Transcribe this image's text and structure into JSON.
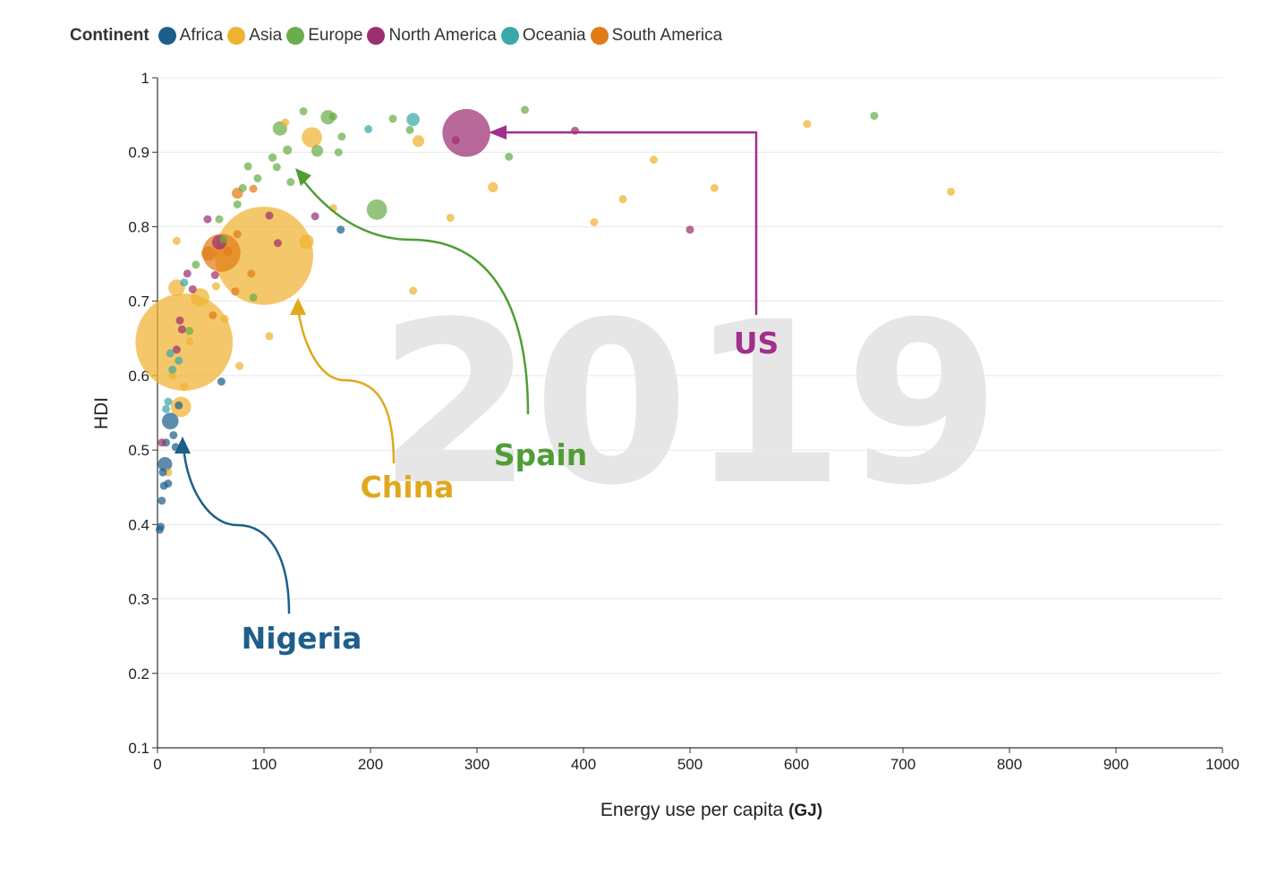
{
  "legend": {
    "title": "Continent",
    "items": [
      {
        "label": "Africa",
        "color": "#1d5f8a"
      },
      {
        "label": "Asia",
        "color": "#f0b331"
      },
      {
        "label": "Europe",
        "color": "#6aad4a"
      },
      {
        "label": "North America",
        "color": "#9c2f72"
      },
      {
        "label": "Oceania",
        "color": "#3aa8a8"
      },
      {
        "label": "South America",
        "color": "#e07b16"
      }
    ]
  },
  "chart_data": {
    "type": "scatter",
    "title": "",
    "year_label": "2019",
    "xlabel": "Energy use per capita",
    "xlabel_unit": "(GJ)",
    "ylabel": "HDI",
    "xlim": [
      0,
      1000
    ],
    "ylim": [
      0.1,
      1.0
    ],
    "x_ticks": [
      0,
      100,
      200,
      300,
      400,
      500,
      600,
      700,
      800,
      900,
      1000
    ],
    "y_ticks": [
      0.1,
      0.2,
      0.3,
      0.4,
      0.5,
      0.6,
      0.7,
      0.8,
      0.9,
      1
    ],
    "grid": "horizontal",
    "legend_position": "top-left",
    "bubble_size_encodes": "population",
    "series": [
      {
        "name": "Africa",
        "color": "#1d5f8a",
        "points": [
          {
            "x": 3,
            "y": 0.397,
            "size": 2
          },
          {
            "x": 2,
            "y": 0.393,
            "size": 2
          },
          {
            "x": 4,
            "y": 0.432,
            "size": 2
          },
          {
            "x": 6,
            "y": 0.452,
            "size": 2
          },
          {
            "x": 7,
            "y": 0.481,
            "size": 30
          },
          {
            "x": 10,
            "y": 0.455,
            "size": 4
          },
          {
            "x": 5,
            "y": 0.47,
            "size": 3
          },
          {
            "x": 12,
            "y": 0.539,
            "size": 40
          },
          {
            "x": 8,
            "y": 0.51,
            "size": 4
          },
          {
            "x": 15,
            "y": 0.52,
            "size": 3
          },
          {
            "x": 20,
            "y": 0.56,
            "size": 2
          },
          {
            "x": 60,
            "y": 0.592,
            "size": 2
          },
          {
            "x": 172,
            "y": 0.796,
            "size": 2
          },
          {
            "x": 17,
            "y": 0.504,
            "size": 3
          }
        ]
      },
      {
        "name": "Asia",
        "color": "#f0b331",
        "points": [
          {
            "x": 25,
            "y": 0.645,
            "size": 1366
          },
          {
            "x": 100,
            "y": 0.761,
            "size": 1398
          },
          {
            "x": 22,
            "y": 0.558,
            "size": 60
          },
          {
            "x": 18,
            "y": 0.718,
            "size": 40
          },
          {
            "x": 40,
            "y": 0.705,
            "size": 50
          },
          {
            "x": 25,
            "y": 0.585,
            "size": 10
          },
          {
            "x": 145,
            "y": 0.92,
            "size": 60
          },
          {
            "x": 140,
            "y": 0.78,
            "size": 30
          },
          {
            "x": 245,
            "y": 0.915,
            "size": 20
          },
          {
            "x": 315,
            "y": 0.853,
            "size": 15
          },
          {
            "x": 610,
            "y": 0.938,
            "size": 2
          },
          {
            "x": 745,
            "y": 0.847,
            "size": 2
          },
          {
            "x": 523,
            "y": 0.852,
            "size": 2
          },
          {
            "x": 466,
            "y": 0.89,
            "size": 2
          },
          {
            "x": 437,
            "y": 0.837,
            "size": 2
          },
          {
            "x": 410,
            "y": 0.806,
            "size": 2
          },
          {
            "x": 275,
            "y": 0.812,
            "size": 2
          },
          {
            "x": 240,
            "y": 0.714,
            "size": 2
          },
          {
            "x": 105,
            "y": 0.653,
            "size": 2
          },
          {
            "x": 77,
            "y": 0.613,
            "size": 2
          },
          {
            "x": 18,
            "y": 0.781,
            "size": 3
          },
          {
            "x": 55,
            "y": 0.72,
            "size": 5
          },
          {
            "x": 10,
            "y": 0.47,
            "size": 4
          },
          {
            "x": 165,
            "y": 0.825,
            "size": 3
          },
          {
            "x": 120,
            "y": 0.94,
            "size": 3
          },
          {
            "x": 63,
            "y": 0.676,
            "size": 4
          },
          {
            "x": 14,
            "y": 0.6,
            "size": 3
          },
          {
            "x": 30,
            "y": 0.646,
            "size": 3
          }
        ]
      },
      {
        "name": "Europe",
        "color": "#6aad4a",
        "points": [
          {
            "x": 206,
            "y": 0.823,
            "size": 60
          },
          {
            "x": 115,
            "y": 0.932,
            "size": 30
          },
          {
            "x": 160,
            "y": 0.947,
            "size": 30
          },
          {
            "x": 150,
            "y": 0.902,
            "size": 20
          },
          {
            "x": 122,
            "y": 0.903,
            "size": 12
          },
          {
            "x": 108,
            "y": 0.893,
            "size": 10
          },
          {
            "x": 112,
            "y": 0.88,
            "size": 8
          },
          {
            "x": 345,
            "y": 0.957,
            "size": 2
          },
          {
            "x": 673,
            "y": 0.949,
            "size": 2
          },
          {
            "x": 330,
            "y": 0.894,
            "size": 2
          },
          {
            "x": 137,
            "y": 0.955,
            "size": 2
          },
          {
            "x": 221,
            "y": 0.945,
            "size": 2
          },
          {
            "x": 170,
            "y": 0.9,
            "size": 2
          },
          {
            "x": 173,
            "y": 0.921,
            "size": 2
          },
          {
            "x": 94,
            "y": 0.865,
            "size": 2
          },
          {
            "x": 85,
            "y": 0.881,
            "size": 2
          },
          {
            "x": 80,
            "y": 0.852,
            "size": 2
          },
          {
            "x": 75,
            "y": 0.83,
            "size": 2
          },
          {
            "x": 62,
            "y": 0.783,
            "size": 6
          },
          {
            "x": 36,
            "y": 0.749,
            "size": 2
          },
          {
            "x": 58,
            "y": 0.81,
            "size": 2
          },
          {
            "x": 125,
            "y": 0.86,
            "size": 2
          },
          {
            "x": 165,
            "y": 0.948,
            "size": 2
          },
          {
            "x": 237,
            "y": 0.93,
            "size": 2
          },
          {
            "x": 90,
            "y": 0.705,
            "size": 8
          },
          {
            "x": 30,
            "y": 0.66,
            "size": 2
          }
        ]
      },
      {
        "name": "North America",
        "color": "#9c2f72",
        "points": [
          {
            "x": 290,
            "y": 0.926,
            "size": 330
          },
          {
            "x": 392,
            "y": 0.929,
            "size": 8
          },
          {
            "x": 500,
            "y": 0.796,
            "size": 2
          },
          {
            "x": 58,
            "y": 0.779,
            "size": 30
          },
          {
            "x": 47,
            "y": 0.81,
            "size": 2
          },
          {
            "x": 33,
            "y": 0.716,
            "size": 3
          },
          {
            "x": 28,
            "y": 0.737,
            "size": 3
          },
          {
            "x": 23,
            "y": 0.662,
            "size": 2
          },
          {
            "x": 21,
            "y": 0.674,
            "size": 2
          },
          {
            "x": 18,
            "y": 0.635,
            "size": 2
          },
          {
            "x": 4,
            "y": 0.51,
            "size": 2
          },
          {
            "x": 105,
            "y": 0.815,
            "size": 2
          },
          {
            "x": 148,
            "y": 0.814,
            "size": 2
          },
          {
            "x": 113,
            "y": 0.778,
            "size": 2
          },
          {
            "x": 280,
            "y": 0.916,
            "size": 2
          },
          {
            "x": 54,
            "y": 0.735,
            "size": 2
          }
        ]
      },
      {
        "name": "Oceania",
        "color": "#3aa8a8",
        "points": [
          {
            "x": 240,
            "y": 0.944,
            "size": 25
          },
          {
            "x": 198,
            "y": 0.931,
            "size": 5
          },
          {
            "x": 12,
            "y": 0.63,
            "size": 2
          },
          {
            "x": 14,
            "y": 0.608,
            "size": 2
          },
          {
            "x": 20,
            "y": 0.62,
            "size": 2
          },
          {
            "x": 10,
            "y": 0.565,
            "size": 2
          },
          {
            "x": 25,
            "y": 0.725,
            "size": 2
          },
          {
            "x": 8,
            "y": 0.555,
            "size": 2
          }
        ]
      },
      {
        "name": "South America",
        "color": "#e07b16",
        "points": [
          {
            "x": 60,
            "y": 0.765,
            "size": 211
          },
          {
            "x": 75,
            "y": 0.845,
            "size": 18
          },
          {
            "x": 90,
            "y": 0.851,
            "size": 8
          },
          {
            "x": 73,
            "y": 0.713,
            "size": 10
          },
          {
            "x": 52,
            "y": 0.681,
            "size": 4
          },
          {
            "x": 88,
            "y": 0.737,
            "size": 4
          },
          {
            "x": 75,
            "y": 0.79,
            "size": 4
          },
          {
            "x": 48,
            "y": 0.764,
            "size": 30
          },
          {
            "x": 66,
            "y": 0.767,
            "size": 12
          }
        ]
      }
    ],
    "annotations": [
      {
        "label": "US",
        "color": "#a12f8b"
      },
      {
        "label": "Spain",
        "color": "#4f9e35"
      },
      {
        "label": "China",
        "color": "#e0a81c"
      },
      {
        "label": "Nigeria",
        "color": "#1d5f8a"
      }
    ]
  }
}
